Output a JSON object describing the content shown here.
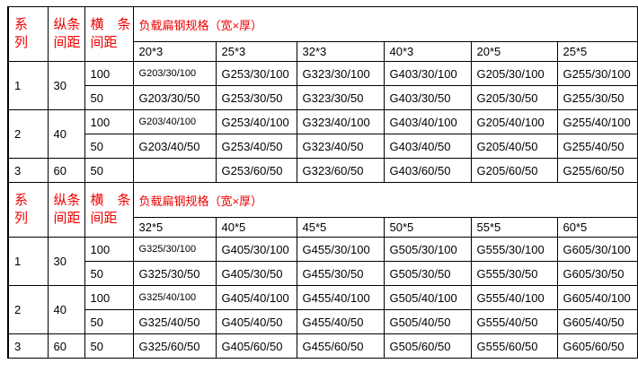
{
  "colors": {
    "header_text": "#f00000",
    "body_text": "#000000",
    "grid_line": "#000000",
    "background": "#ffffff"
  },
  "table": {
    "col_headers": {
      "series": [
        "系",
        "列"
      ],
      "v_spacing": [
        "纵条",
        "间距"
      ],
      "h_spacing": [
        "横　条",
        "间距"
      ],
      "spec_title": "负载扁钢规格（宽×厚）"
    },
    "sections": [
      {
        "spec_sizes": [
          "20*3",
          "25*3",
          "32*3",
          "40*3",
          "20*5",
          "25*5"
        ],
        "rows": [
          {
            "series": "1",
            "v_spacing": "30",
            "h_spacing": "100",
            "cells": [
              "G203/30/100",
              "G253/30/100",
              "G323/30/100",
              "G403/30/100",
              "G205/30/100",
              "G255/30/100"
            ]
          },
          {
            "h_spacing": "50",
            "cells": [
              "G203/30/50",
              "G253/30/50",
              "G323/30/50",
              "G403/30/50",
              "G205/30/50",
              "G255/30/50"
            ]
          },
          {
            "series": "2",
            "v_spacing": "40",
            "h_spacing": "100",
            "cells": [
              "G203/40/100",
              "G253/40/100",
              "G323/40/100",
              "G403/40/100",
              "G205/40/100",
              "G255/40/100"
            ]
          },
          {
            "h_spacing": "50",
            "cells": [
              "G203/40/50",
              "G253/40/50",
              "G323/40/50",
              "G403/40/50",
              "G205/40/50",
              "G255/40/50"
            ]
          },
          {
            "series": "3",
            "v_spacing": "60",
            "h_spacing": "50",
            "cells": [
              "",
              "G253/60/50",
              "G323/60/50",
              "G403/60/50",
              "G205/60/50",
              "G255/60/50"
            ]
          }
        ]
      },
      {
        "spec_sizes": [
          "32*5",
          "40*5",
          "45*5",
          "50*5",
          "55*5",
          "60*5"
        ],
        "rows": [
          {
            "series": "1",
            "v_spacing": "30",
            "h_spacing": "100",
            "cells": [
              "G325/30/100",
              "G405/30/100",
              "G455/30/100",
              "G505/30/100",
              "G555/30/100",
              "G605/30/100"
            ]
          },
          {
            "h_spacing": "50",
            "cells": [
              "G325/30/50",
              "G405/30/50",
              "G455/30/50",
              "G505/30/50",
              "G555/30/50",
              "G605/30/50"
            ]
          },
          {
            "series": "2",
            "v_spacing": "40",
            "h_spacing": "100",
            "cells": [
              "G325/40/100",
              "G405/40/100",
              "G455/40/100",
              "G505/40/100",
              "G555/40/100",
              "G605/40/100"
            ]
          },
          {
            "h_spacing": "50",
            "cells": [
              "G325/40/50",
              "G405/40/50",
              "G455/40/50",
              "G505/40/50",
              "G555/40/50",
              "G605/40/50"
            ]
          },
          {
            "series": "3",
            "v_spacing": "60",
            "h_spacing": "50",
            "cells": [
              "G325/60/50",
              "G405/60/50",
              "G455/60/50",
              "G505/60/50",
              "G555/60/50",
              "G605/60/50"
            ]
          }
        ]
      }
    ]
  }
}
